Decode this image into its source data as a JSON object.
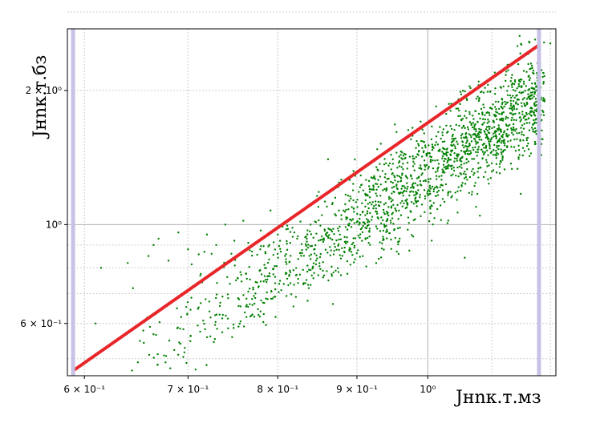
{
  "chart_data": {
    "type": "scatter",
    "title": "",
    "xlabel": "Jнnк.т.мз",
    "ylabel": "Jнnк.т.бз",
    "x_scale": "log",
    "y_scale": "log",
    "xlim": [
      0.585,
      1.21
    ],
    "ylim": [
      0.458,
      2.75
    ],
    "grid": true,
    "x_ticks": [
      {
        "value": 0.6,
        "label": "6 × 10⁻¹"
      },
      {
        "value": 0.7,
        "label": "7 × 10⁻¹"
      },
      {
        "value": 0.8,
        "label": "8 × 10⁻¹"
      },
      {
        "value": 0.9,
        "label": "9 × 10⁻¹"
      },
      {
        "value": 1.0,
        "label": "10⁰"
      }
    ],
    "y_ticks": [
      {
        "value": 0.6,
        "label": "6 × 10⁻¹"
      },
      {
        "value": 1.0,
        "label": "10⁰"
      },
      {
        "value": 2.0,
        "label": "2 × 10⁰"
      }
    ],
    "x_minor_grid": [
      1.1,
      1.2
    ],
    "y_minor_grid": [
      0.5,
      0.7,
      0.8,
      0.9,
      3.0
    ],
    "vlines": [
      0.59,
      1.18
    ],
    "fit_line": {
      "x": [
        0.59,
        1.18
      ],
      "y": [
        0.47,
        2.53
      ]
    },
    "series": [
      {
        "color": "#008000",
        "cloud": {
          "x_range": [
            0.62,
            1.19
          ],
          "slope": 2.3,
          "offset_log": 0.115,
          "spread_log": 0.055,
          "n_points": 1800
        },
        "points": [
          [
            0.59,
            0.67
          ],
          [
            0.61,
            0.6
          ],
          [
            0.615,
            0.8
          ],
          [
            0.64,
            0.82
          ],
          [
            0.645,
            0.72
          ],
          [
            0.66,
            0.85
          ],
          [
            0.665,
            0.9
          ],
          [
            0.67,
            0.93
          ],
          [
            0.68,
            0.83
          ],
          [
            0.69,
            0.96
          ],
          [
            0.7,
            0.88
          ],
          [
            0.72,
            0.95
          ],
          [
            0.725,
            0.86
          ],
          [
            0.73,
            0.9
          ],
          [
            0.74,
            1.0
          ],
          [
            0.75,
            0.92
          ],
          [
            0.76,
            1.02
          ],
          [
            0.77,
            0.87
          ],
          [
            0.78,
            0.97
          ],
          [
            0.79,
            0.9
          ],
          [
            0.8,
            0.95
          ],
          [
            0.82,
            0.96
          ],
          [
            0.84,
            1.0
          ],
          [
            1.2,
            2.55
          ]
        ]
      }
    ]
  }
}
